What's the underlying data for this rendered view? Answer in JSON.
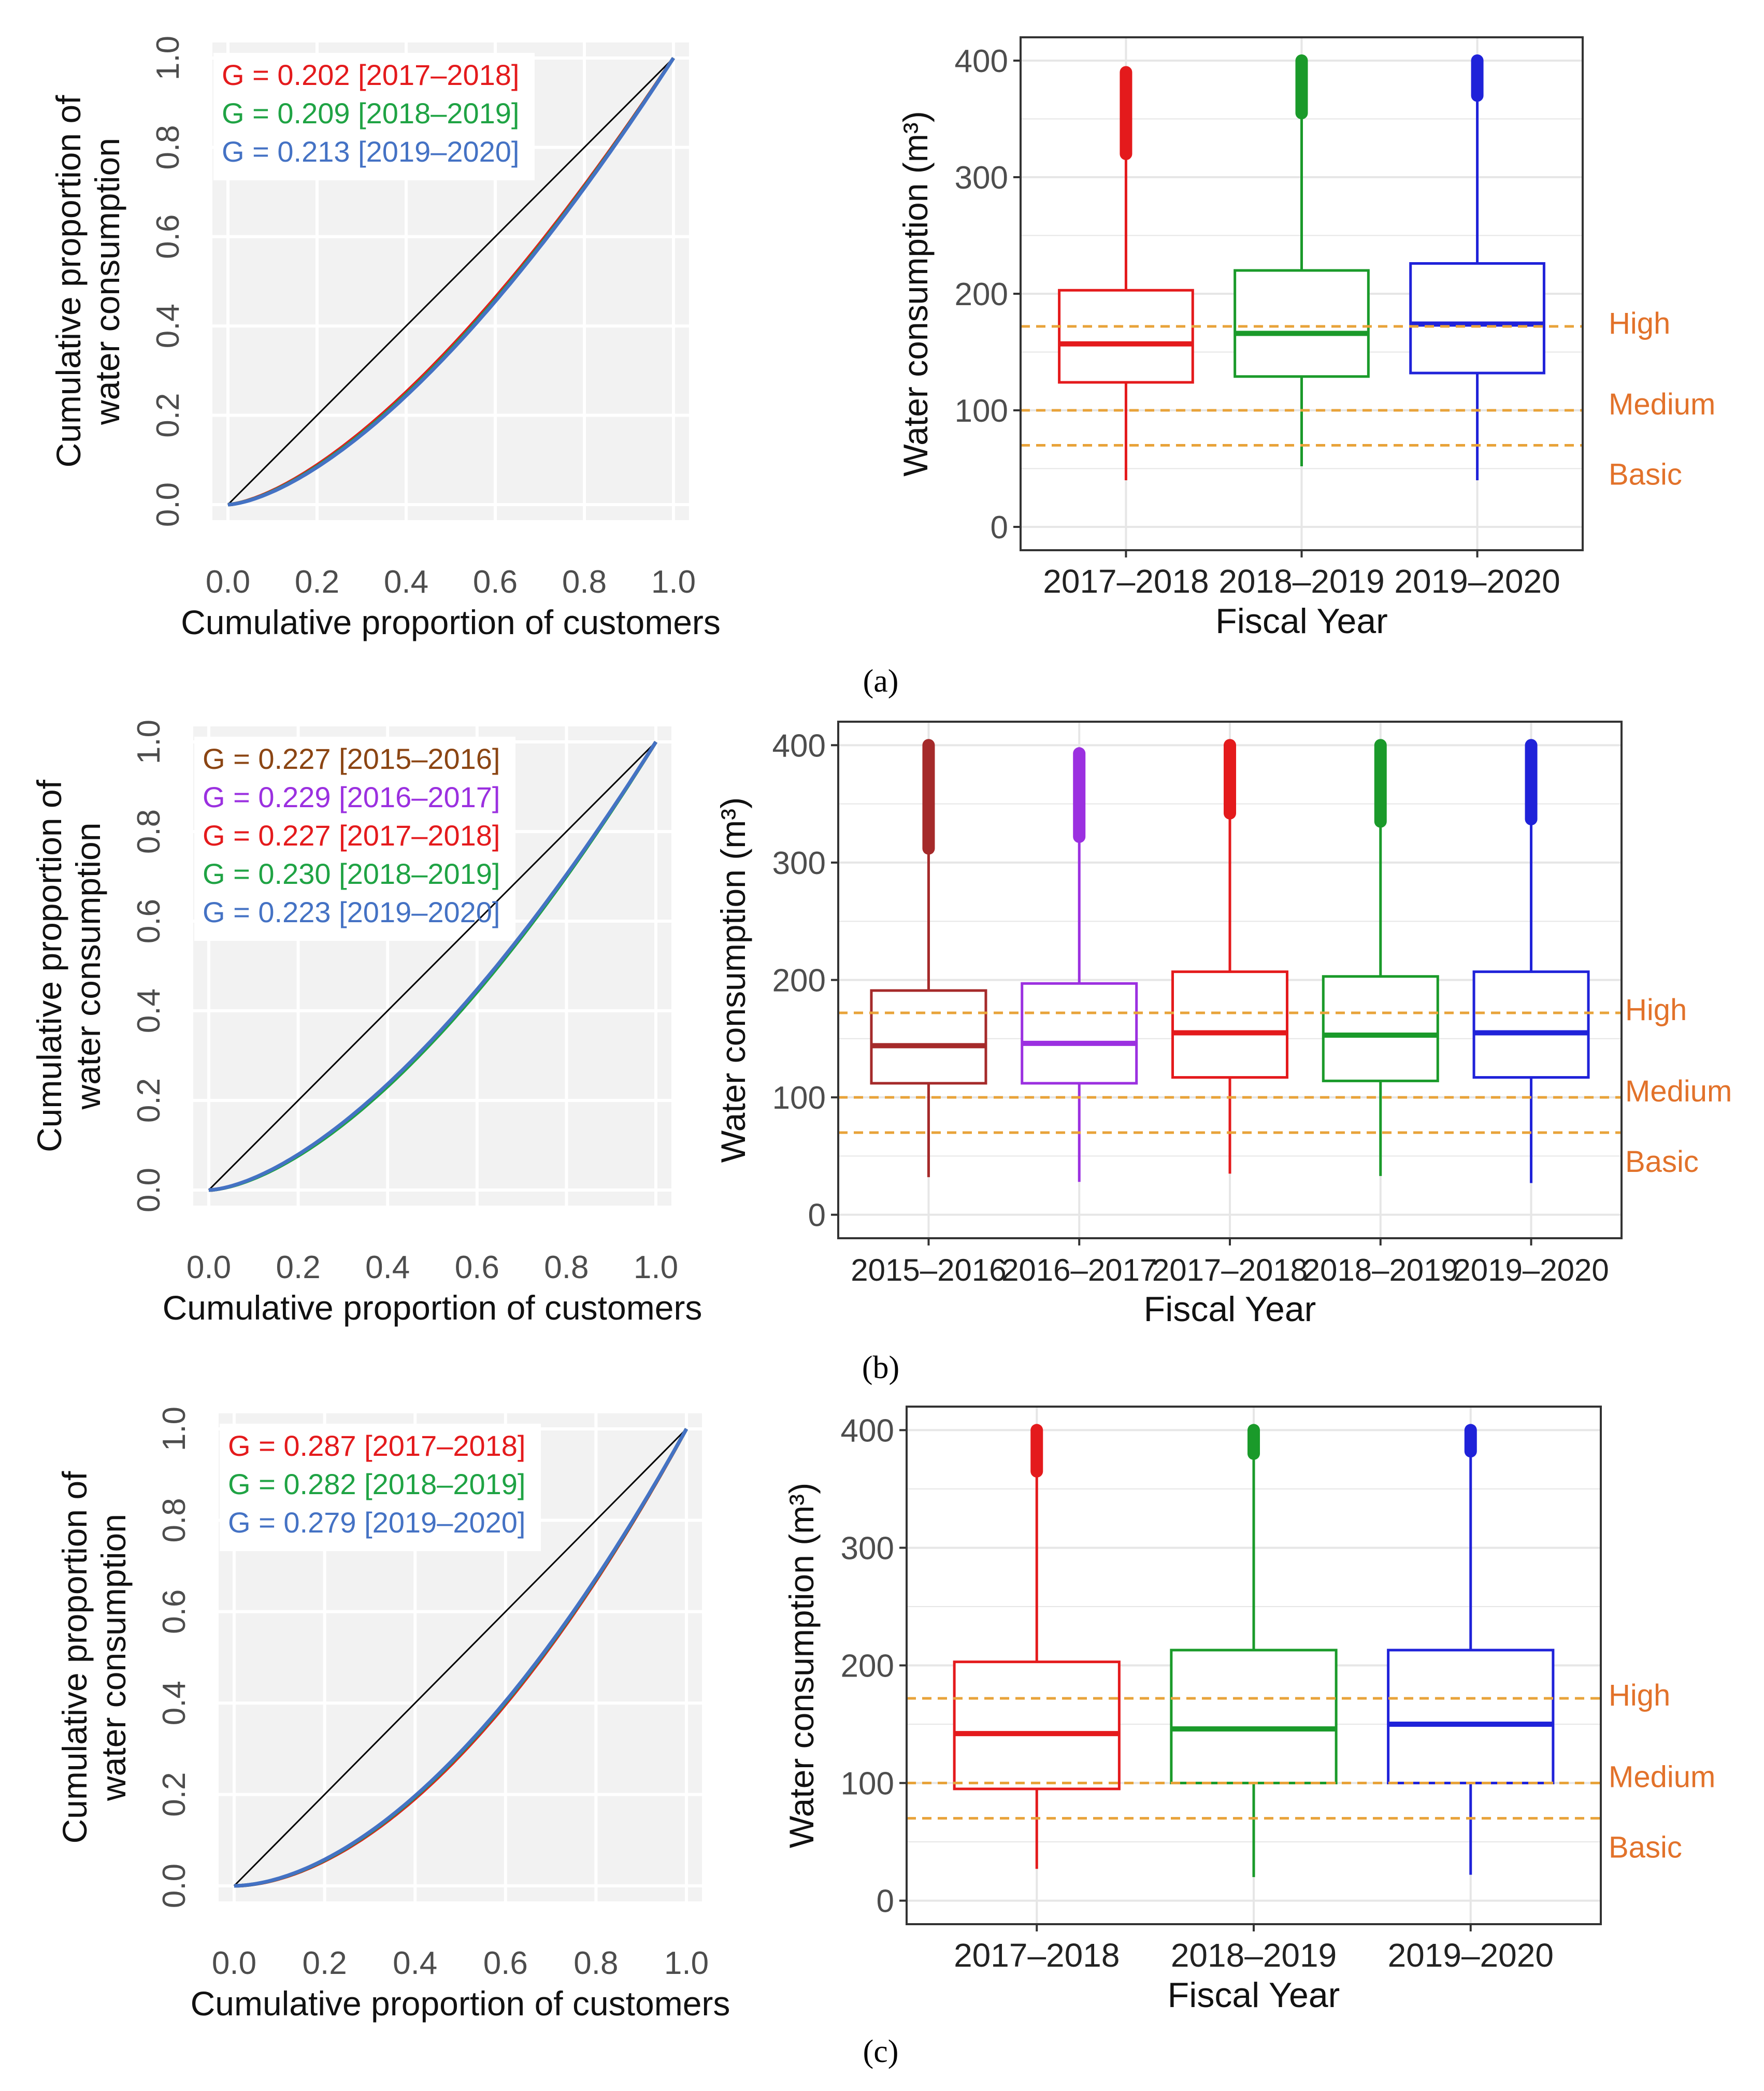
{
  "panels": [
    {
      "label": "(a)",
      "label_letter": "a",
      "lorenz": {
        "type": "line",
        "xlabel": "Cumulative proportion of customers",
        "ylabel_line1": "Cumulative proportion of",
        "ylabel_line2": "water consumption",
        "xlim": [
          0,
          1
        ],
        "ylim": [
          0,
          1
        ],
        "ticks": [
          "0.0",
          "0.2",
          "0.4",
          "0.6",
          "0.8",
          "1.0"
        ],
        "tick_values": [
          0,
          0.2,
          0.4,
          0.6,
          0.8,
          1.0
        ],
        "equality_line": true,
        "series": [
          {
            "name": "2017–2018",
            "gini": 0.202,
            "legend": "G = 0.202 [2017–2018]",
            "color": "#e41a1c"
          },
          {
            "name": "2018–2019",
            "gini": 0.209,
            "legend": "G = 0.209 [2018–2019]",
            "color": "#1fa344"
          },
          {
            "name": "2019–2020",
            "gini": 0.213,
            "legend": "G = 0.213 [2019–2020]",
            "color": "#4472c4"
          }
        ]
      },
      "boxplot": {
        "type": "box",
        "xlabel": "Fiscal Year",
        "ylabel": "Water consumption (m³)",
        "ylim": [
          0,
          400
        ],
        "yticks": [
          0,
          100,
          200,
          300,
          400
        ],
        "ytick_labels": [
          "0",
          "100",
          "200",
          "300",
          "400"
        ],
        "thresholds": [
          {
            "name": "High",
            "value": 172
          },
          {
            "name": "Medium",
            "value": 100
          },
          {
            "name": "Basic",
            "value": 70
          }
        ],
        "categories": [
          "2017–2018",
          "2018–2019",
          "2019–2020"
        ],
        "boxes": [
          {
            "category": "2017–2018",
            "color": "#e41a1c",
            "whisker_low": 40,
            "q1": 124,
            "median": 157,
            "q3": 203,
            "whisker_high": 320,
            "outlier_from": 320,
            "outlier_to": 390
          },
          {
            "category": "2018–2019",
            "color": "#1a9a2a",
            "whisker_low": 52,
            "q1": 129,
            "median": 166,
            "q3": 220,
            "whisker_high": 355,
            "outlier_from": 355,
            "outlier_to": 400
          },
          {
            "category": "2019–2020",
            "color": "#1f22d9",
            "whisker_low": 40,
            "q1": 132,
            "median": 174,
            "q3": 226,
            "whisker_high": 365,
            "outlier_from": 370,
            "outlier_to": 400
          }
        ]
      }
    },
    {
      "label": "(b)",
      "label_letter": "b",
      "lorenz": {
        "type": "line",
        "xlabel": "Cumulative proportion of customers",
        "ylabel_line1": "Cumulative proportion of",
        "ylabel_line2": "water consumption",
        "xlim": [
          0,
          1
        ],
        "ylim": [
          0,
          1
        ],
        "ticks": [
          "0.0",
          "0.2",
          "0.4",
          "0.6",
          "0.8",
          "1.0"
        ],
        "tick_values": [
          0,
          0.2,
          0.4,
          0.6,
          0.8,
          1.0
        ],
        "equality_line": true,
        "series": [
          {
            "name": "2015–2016",
            "gini": 0.227,
            "legend": "G = 0.227 [2015–2016]",
            "color": "#8b4513"
          },
          {
            "name": "2016–2017",
            "gini": 0.229,
            "legend": "G = 0.229 [2016–2017]",
            "color": "#9b30e0"
          },
          {
            "name": "2017–2018",
            "gini": 0.227,
            "legend": "G = 0.227 [2017–2018]",
            "color": "#e41a1c"
          },
          {
            "name": "2018–2019",
            "gini": 0.23,
            "legend": "G = 0.230 [2018–2019]",
            "color": "#1fa344"
          },
          {
            "name": "2019–2020",
            "gini": 0.223,
            "legend": "G = 0.223 [2019–2020]",
            "color": "#4472c4"
          }
        ]
      },
      "boxplot": {
        "type": "box",
        "xlabel": "Fiscal Year",
        "ylabel": "Water consumption (m³)",
        "ylim": [
          0,
          400
        ],
        "yticks": [
          0,
          100,
          200,
          300,
          400
        ],
        "ytick_labels": [
          "0",
          "100",
          "200",
          "300",
          "400"
        ],
        "thresholds": [
          {
            "name": "High",
            "value": 172
          },
          {
            "name": "Medium",
            "value": 100
          },
          {
            "name": "Basic",
            "value": 70
          }
        ],
        "categories": [
          "2015–2016",
          "2016–2017",
          "2017–2018",
          "2018–2019",
          "2019–2020"
        ],
        "boxes": [
          {
            "category": "2015–2016",
            "color": "#a52a2a",
            "whisker_low": 32,
            "q1": 112,
            "median": 144,
            "q3": 191,
            "whisker_high": 310,
            "outlier_from": 312,
            "outlier_to": 400
          },
          {
            "category": "2016–2017",
            "color": "#9b30e0",
            "whisker_low": 28,
            "q1": 112,
            "median": 146,
            "q3": 197,
            "whisker_high": 320,
            "outlier_from": 322,
            "outlier_to": 393
          },
          {
            "category": "2017–2018",
            "color": "#e41a1c",
            "whisker_low": 35,
            "q1": 117,
            "median": 155,
            "q3": 207,
            "whisker_high": 340,
            "outlier_from": 342,
            "outlier_to": 400
          },
          {
            "category": "2018–2019",
            "color": "#1a9a2a",
            "whisker_low": 33,
            "q1": 114,
            "median": 153,
            "q3": 203,
            "whisker_high": 333,
            "outlier_from": 335,
            "outlier_to": 400
          },
          {
            "category": "2019–2020",
            "color": "#1f22d9",
            "whisker_low": 27,
            "q1": 117,
            "median": 155,
            "q3": 207,
            "whisker_high": 335,
            "outlier_from": 337,
            "outlier_to": 400
          }
        ]
      }
    },
    {
      "label": "(c)",
      "label_letter": "c",
      "lorenz": {
        "type": "line",
        "xlabel": "Cumulative proportion of customers",
        "ylabel_line1": "Cumulative proportion of",
        "ylabel_line2": "water consumption",
        "xlim": [
          0,
          1
        ],
        "ylim": [
          0,
          1
        ],
        "ticks": [
          "0.0",
          "0.2",
          "0.4",
          "0.6",
          "0.8",
          "1.0"
        ],
        "tick_values": [
          0,
          0.2,
          0.4,
          0.6,
          0.8,
          1.0
        ],
        "equality_line": true,
        "series": [
          {
            "name": "2017–2018",
            "gini": 0.287,
            "legend": "G = 0.287 [2017–2018]",
            "color": "#e41a1c"
          },
          {
            "name": "2018–2019",
            "gini": 0.282,
            "legend": "G = 0.282 [2018–2019]",
            "color": "#1fa344"
          },
          {
            "name": "2019–2020",
            "gini": 0.279,
            "legend": "G = 0.279 [2019–2020]",
            "color": "#4472c4"
          }
        ]
      },
      "boxplot": {
        "type": "box",
        "xlabel": "Fiscal Year",
        "ylabel": "Water consumption (m³)",
        "ylim": [
          0,
          400
        ],
        "yticks": [
          0,
          100,
          200,
          300,
          400
        ],
        "ytick_labels": [
          "0",
          "100",
          "200",
          "300",
          "400"
        ],
        "thresholds": [
          {
            "name": "High",
            "value": 172
          },
          {
            "name": "Medium",
            "value": 100
          },
          {
            "name": "Basic",
            "value": 70
          }
        ],
        "categories": [
          "2017–2018",
          "2018–2019",
          "2019–2020"
        ],
        "boxes": [
          {
            "category": "2017–2018",
            "color": "#e41a1c",
            "whisker_low": 27,
            "q1": 95,
            "median": 142,
            "q3": 203,
            "whisker_high": 365,
            "outlier_from": 365,
            "outlier_to": 400
          },
          {
            "category": "2018–2019",
            "color": "#1a9a2a",
            "whisker_low": 20,
            "q1": 100,
            "median": 146,
            "q3": 213,
            "whisker_high": 380,
            "outlier_from": 380,
            "outlier_to": 400
          },
          {
            "category": "2019–2020",
            "color": "#1f22d9",
            "whisker_low": 22,
            "q1": 100,
            "median": 150,
            "q3": 213,
            "whisker_high": 380,
            "outlier_from": 382,
            "outlier_to": 400
          }
        ]
      }
    }
  ],
  "colors": {
    "equality_line": "#000000",
    "lorenz_bg": "#f2f2f2",
    "lorenz_grid": "#ffffff",
    "threshold": "#e8a33a",
    "threshold_label": "#e2722a",
    "gridline": "#e6e6e6",
    "axis_text": "#4d4d4d"
  }
}
